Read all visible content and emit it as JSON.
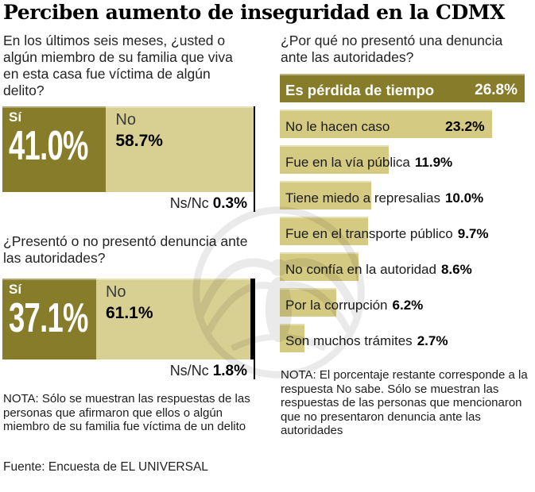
{
  "title": "Perciben aumento de inseguridad en la CDMX",
  "colors": {
    "dark_olive": "#877C2A",
    "tan_left": "#D8CF92",
    "tan_right": "#D5CA81",
    "nsnc_black": "#000000"
  },
  "left_column": {
    "question1": "En los últimos seis meses, ¿usted o algún miembro de su familia que viva en esta casa fue víctima de algún delito?",
    "question2": "¿Presentó o no presentó denuncia ante las autoridades?",
    "note": "NOTA: Sólo se muestran las respuestas de las personas que afirmaron que ellos o algún miembro de su familia fue víctima de un delito",
    "source": "Fuente: Encuesta de EL UNIVERSAL"
  },
  "right_column": {
    "question": "¿Por qué no presentó una denuncia ante las autoridades?",
    "note": "NOTA: El porcentaje restante corresponde a la respuesta No sabe. Sólo se muestran las respuestas de las personas que mencionaron que no presentaron denuncia ante las autoridades"
  },
  "chart_data": [
    {
      "type": "bar",
      "subtype": "horizontal-stacked",
      "title": "En los últimos seis meses, ¿usted o algún miembro de su familia que viva en esta casa fue víctima de algún delito?",
      "categories": [
        "Sí",
        "No",
        "Ns/Nc"
      ],
      "values": [
        41.0,
        58.7,
        0.3
      ],
      "unit": "%",
      "colors": [
        "#877C2A",
        "#D8CF92",
        "#000000"
      ],
      "xlim": [
        0,
        100
      ],
      "legend_position": "inside"
    },
    {
      "type": "bar",
      "subtype": "horizontal-stacked",
      "title": "¿Presentó o no presentó denuncia ante las autoridades?",
      "categories": [
        "Sí",
        "No",
        "Ns/Nc"
      ],
      "values": [
        37.1,
        61.1,
        1.8
      ],
      "unit": "%",
      "colors": [
        "#877C2A",
        "#D8CF92",
        "#000000"
      ],
      "xlim": [
        0,
        100
      ],
      "legend_position": "inside"
    },
    {
      "type": "bar",
      "subtype": "horizontal",
      "title": "¿Por qué no presentó una denuncia ante las autoridades?",
      "categories": [
        "Es pérdida de tiempo",
        "No le hacen caso",
        "Fue en la vía pública",
        "Tiene miedo a represalias",
        "Fue en el transporte público",
        "No confía en la autoridad",
        "Por la corrupción",
        "Son muchos trámites"
      ],
      "values": [
        26.8,
        23.2,
        11.9,
        10.0,
        9.7,
        8.6,
        6.2,
        2.7
      ],
      "unit": "%",
      "bar_colors": [
        "#877C2A",
        "#D5CA81",
        "#D5CA81",
        "#D5CA81",
        "#D5CA81",
        "#D5CA81",
        "#D5CA81",
        "#D5CA81"
      ],
      "xlim": [
        0,
        26.8
      ],
      "grid": false
    }
  ]
}
